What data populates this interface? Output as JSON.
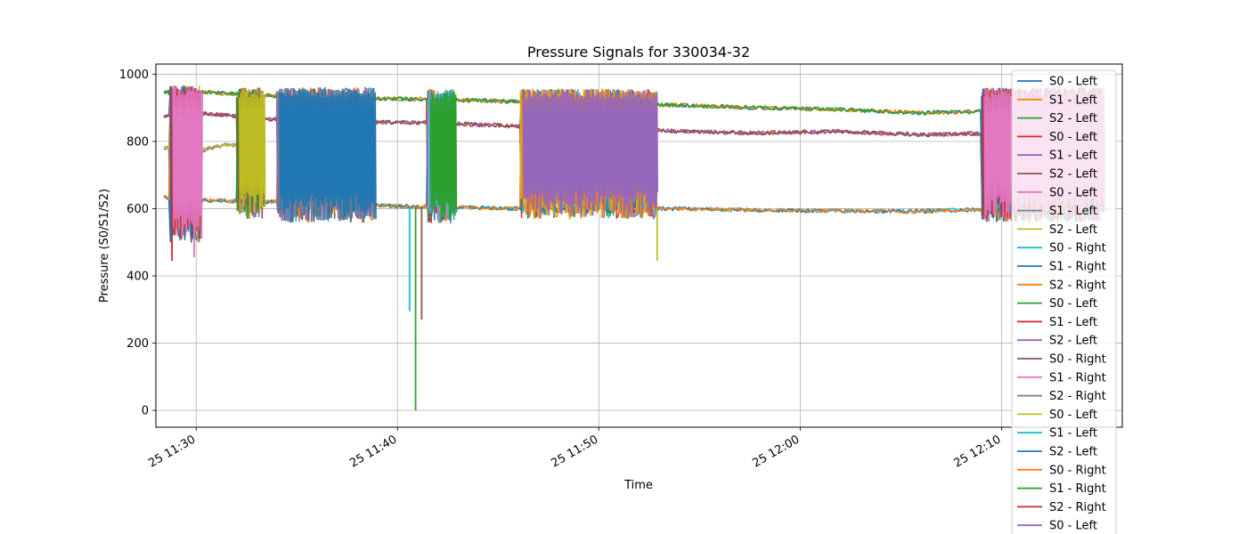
{
  "chart_data": {
    "type": "line",
    "title": "Pressure Signals for 330034-32",
    "xlabel": "Time",
    "ylabel": "Pressure (S0/S1/S2)",
    "x_axis": {
      "kind": "time",
      "start": "11:28",
      "end": "12:16",
      "ticks": [
        "25 11:30",
        "25 11:40",
        "25 11:50",
        "25 12:00",
        "25 12:10"
      ],
      "tick_minutes": [
        30,
        40,
        50,
        60,
        70
      ]
    },
    "ylim": [
      -50,
      1030
    ],
    "yticks": [
      0,
      200,
      400,
      600,
      800,
      1000
    ],
    "grid": true,
    "legend_placement": "upper-right",
    "colors": [
      "#1f77b4",
      "#ff7f0e",
      "#2ca02c",
      "#d62728",
      "#9467bd",
      "#8c564b",
      "#e377c2",
      "#7f7f7f",
      "#bcbd22",
      "#17becf"
    ],
    "series": [
      {
        "name": "S0 - Left"
      },
      {
        "name": "S1 - Left"
      },
      {
        "name": "S2 - Left"
      },
      {
        "name": "S0 - Left"
      },
      {
        "name": "S1 - Left"
      },
      {
        "name": "S2 - Left"
      },
      {
        "name": "S0 - Left"
      },
      {
        "name": "S1 - Left"
      },
      {
        "name": "S2 - Left"
      },
      {
        "name": "S0 - Right"
      },
      {
        "name": "S1 - Right"
      },
      {
        "name": "S2 - Right"
      },
      {
        "name": "S0 - Left"
      },
      {
        "name": "S1 - Left"
      },
      {
        "name": "S2 - Left"
      },
      {
        "name": "S0 - Right"
      },
      {
        "name": "S1 - Right"
      },
      {
        "name": "S2 - Right"
      },
      {
        "name": "S0 - Left"
      },
      {
        "name": "S1 - Left"
      },
      {
        "name": "S2 - Left"
      },
      {
        "name": "S0 - Right"
      },
      {
        "name": "S1 - Right"
      },
      {
        "name": "S2 - Right"
      },
      {
        "name": "S0 - Left"
      }
    ],
    "bands": [
      {
        "name": "upper",
        "points": [
          [
            28.4,
            945
          ],
          [
            30.0,
            948
          ],
          [
            34.0,
            935
          ],
          [
            38.0,
            928
          ],
          [
            42.0,
            925
          ],
          [
            46.0,
            918
          ],
          [
            50.0,
            912
          ],
          [
            54.0,
            908
          ],
          [
            58.0,
            900
          ],
          [
            62.0,
            895
          ],
          [
            66.0,
            885
          ],
          [
            70.0,
            890
          ],
          [
            75.0,
            925
          ]
        ]
      },
      {
        "name": "middle",
        "points": [
          [
            28.4,
            875
          ],
          [
            30.0,
            885
          ],
          [
            34.0,
            865
          ],
          [
            38.0,
            858
          ],
          [
            42.0,
            855
          ],
          [
            46.0,
            845
          ],
          [
            50.0,
            840
          ],
          [
            54.0,
            830
          ],
          [
            58.0,
            825
          ],
          [
            62.0,
            830
          ],
          [
            66.0,
            820
          ],
          [
            70.0,
            825
          ],
          [
            75.0,
            860
          ]
        ]
      },
      {
        "name": "lower",
        "points": [
          [
            28.4,
            780
          ],
          [
            30.0,
            770
          ],
          [
            31.5,
            790
          ],
          [
            33.0,
            785
          ]
        ]
      },
      {
        "name": "base",
        "points": [
          [
            28.4,
            635
          ],
          [
            30.0,
            625
          ],
          [
            34.0,
            620
          ],
          [
            38.0,
            610
          ],
          [
            42.0,
            605
          ],
          [
            46.0,
            600
          ],
          [
            50.0,
            598
          ],
          [
            54.0,
            600
          ],
          [
            58.0,
            595
          ],
          [
            62.0,
            593
          ],
          [
            66.0,
            592
          ],
          [
            70.0,
            600
          ],
          [
            75.0,
            610
          ]
        ]
      }
    ],
    "bursts": [
      {
        "start": 28.7,
        "end": 30.2,
        "low": 500,
        "high": 965
      },
      {
        "start": 32.0,
        "end": 33.3,
        "low": 570,
        "high": 960
      },
      {
        "start": 34.0,
        "end": 38.8,
        "low": 560,
        "high": 960
      },
      {
        "start": 41.5,
        "end": 42.8,
        "low": 555,
        "high": 955
      },
      {
        "start": 46.1,
        "end": 52.8,
        "low": 570,
        "high": 955
      },
      {
        "start": 69.0,
        "end": 75.0,
        "low": 560,
        "high": 960
      }
    ],
    "spikes": [
      {
        "x": 28.8,
        "low": 445
      },
      {
        "x": 29.9,
        "low": 455
      },
      {
        "x": 40.6,
        "low": 295
      },
      {
        "x": 40.9,
        "low": 0
      },
      {
        "x": 41.2,
        "low": 270
      },
      {
        "x": 52.9,
        "low": 445
      }
    ]
  }
}
